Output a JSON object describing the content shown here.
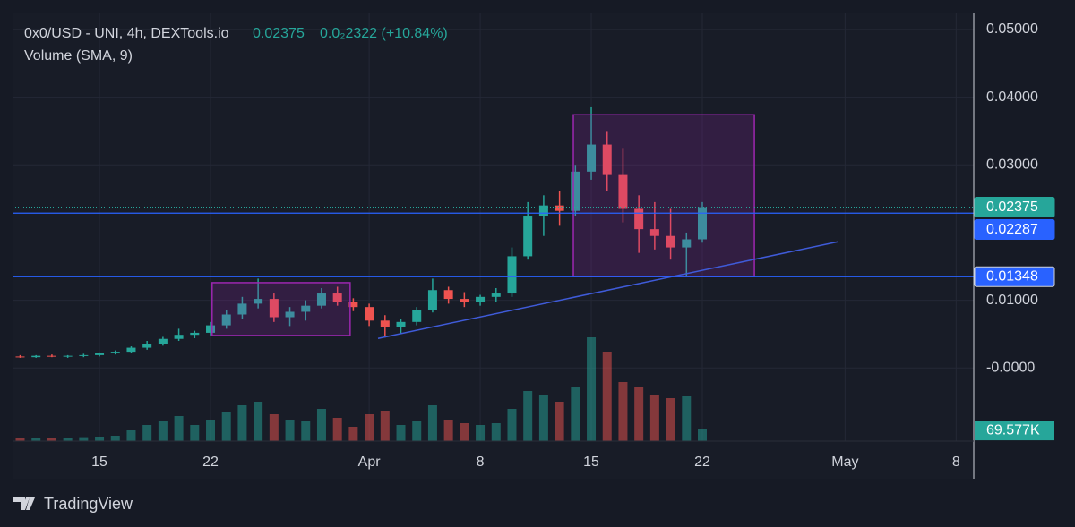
{
  "chart_data": {
    "type": "candlestick",
    "title": "0x0/USD - UNI, 4h, DEXTools.io",
    "change": "0.0₂2322 (+10.84%)",
    "indicator": "Volume (SMA, 9)",
    "last_price": 0.02375,
    "volume_last": {
      "value": 69577,
      "label": "69.577K"
    },
    "up_color": "#26a69a",
    "down_color": "#ef5350",
    "grid": true,
    "xlim": [
      9.52,
      70.11
    ],
    "xticks": [
      15,
      22,
      {
        "value": 32,
        "label": "Apr"
      },
      {
        "value": 39,
        "label": "8"
      },
      {
        "value": 46,
        "label": "15"
      },
      {
        "value": 53,
        "label": "22"
      },
      {
        "value": 62,
        "label": "May"
      },
      {
        "value": 69,
        "label": "8"
      }
    ],
    "ylim": [
      -0.0108,
      0.0525
    ],
    "yticks": [
      {
        "value": 0.05,
        "label": "0.05000"
      },
      {
        "value": 0.04,
        "label": "0.04000"
      },
      {
        "value": 0.03,
        "label": "0.03000"
      },
      {
        "value": 0.01,
        "label": "0.01000"
      },
      {
        "value": 0,
        "label": "-0.0000"
      }
    ],
    "volume_lim": [
      0,
      800000
    ],
    "candles": {
      "x": [
        10,
        11,
        12,
        13,
        14,
        15,
        16,
        17,
        18,
        19,
        20,
        21,
        22,
        23,
        24,
        25,
        26,
        27,
        28,
        29,
        30,
        31,
        32,
        33,
        34,
        35,
        36,
        37,
        38,
        39,
        40,
        41,
        42,
        43,
        44,
        45,
        46,
        47,
        48,
        49,
        50,
        51,
        52,
        53
      ],
      "open": [
        0.0017,
        0.0016,
        0.0018,
        0.0017,
        0.0018,
        0.0019,
        0.0022,
        0.0024,
        0.003,
        0.0036,
        0.0043,
        0.0049,
        0.0052,
        0.0063,
        0.0079,
        0.0095,
        0.0102,
        0.0075,
        0.0083,
        0.0092,
        0.011,
        0.0097,
        0.009,
        0.007,
        0.006,
        0.0068,
        0.0085,
        0.0115,
        0.0102,
        0.0098,
        0.0105,
        0.011,
        0.0165,
        0.0225,
        0.024,
        0.0232,
        0.029,
        0.033,
        0.0285,
        0.0235,
        0.0205,
        0.0195,
        0.0178,
        0.019
      ],
      "high": [
        0.0019,
        0.0019,
        0.002,
        0.0019,
        0.0021,
        0.0023,
        0.0026,
        0.0032,
        0.004,
        0.0046,
        0.0058,
        0.0055,
        0.0068,
        0.0085,
        0.0105,
        0.0132,
        0.011,
        0.009,
        0.01,
        0.0118,
        0.012,
        0.0103,
        0.0095,
        0.0078,
        0.0072,
        0.009,
        0.0132,
        0.012,
        0.0112,
        0.0108,
        0.0118,
        0.0178,
        0.0245,
        0.0255,
        0.0262,
        0.03,
        0.0385,
        0.035,
        0.0325,
        0.0255,
        0.0245,
        0.0235,
        0.02,
        0.0245
      ],
      "low": [
        0.0015,
        0.0015,
        0.0016,
        0.0015,
        0.0016,
        0.0017,
        0.002,
        0.0022,
        0.0027,
        0.0033,
        0.004,
        0.0044,
        0.0048,
        0.0058,
        0.0072,
        0.0088,
        0.0068,
        0.0062,
        0.007,
        0.0088,
        0.0092,
        0.0084,
        0.0062,
        0.0045,
        0.005,
        0.0063,
        0.0082,
        0.0095,
        0.009,
        0.0092,
        0.0098,
        0.0105,
        0.016,
        0.0195,
        0.021,
        0.0225,
        0.0278,
        0.0262,
        0.0215,
        0.017,
        0.0175,
        0.016,
        0.0135,
        0.0185
      ],
      "close": [
        0.0016,
        0.0018,
        0.0017,
        0.0018,
        0.0019,
        0.0022,
        0.0024,
        0.003,
        0.0036,
        0.0043,
        0.0049,
        0.0052,
        0.0063,
        0.0079,
        0.0095,
        0.0102,
        0.0075,
        0.0083,
        0.0092,
        0.011,
        0.0097,
        0.009,
        0.007,
        0.006,
        0.0068,
        0.0085,
        0.0115,
        0.0102,
        0.0098,
        0.0105,
        0.011,
        0.0165,
        0.0225,
        0.024,
        0.0232,
        0.029,
        0.033,
        0.0285,
        0.0235,
        0.0205,
        0.0195,
        0.0178,
        0.019,
        0.02375
      ],
      "volume": [
        20000,
        18000,
        15000,
        17000,
        22000,
        25000,
        30000,
        60000,
        90000,
        110000,
        140000,
        90000,
        120000,
        160000,
        200000,
        220000,
        150000,
        120000,
        110000,
        180000,
        130000,
        80000,
        150000,
        170000,
        90000,
        110000,
        200000,
        120000,
        100000,
        90000,
        100000,
        180000,
        280000,
        260000,
        220000,
        300000,
        580000,
        500000,
        330000,
        300000,
        260000,
        240000,
        250000,
        69577
      ]
    },
    "levels": [
      {
        "value": 0.02287,
        "color": "#2962ff"
      },
      {
        "value": 0.01348,
        "color": "#2962ff"
      }
    ],
    "trendline": {
      "x": [
        32.56,
        61.58
      ],
      "y": [
        0.00437,
        0.01865
      ],
      "color": "#3f5bd9"
    },
    "boxes": [
      {
        "x": [
          22.1,
          30.8
        ],
        "y": [
          0.0048,
          0.0126
        ],
        "color": "#9c27b0"
      },
      {
        "x": [
          44.87,
          56.28
        ],
        "y": [
          0.0135,
          0.0374
        ],
        "color": "#9c27b0"
      }
    ]
  },
  "branding": "TradingView"
}
